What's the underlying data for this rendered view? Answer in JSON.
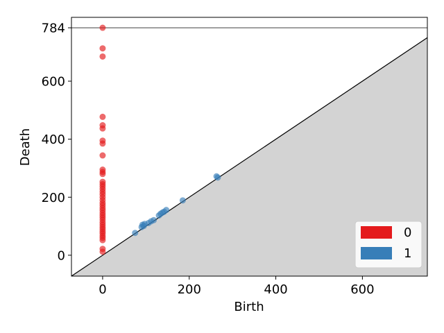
{
  "chart_data": {
    "type": "scatter",
    "title": "",
    "xlabel": "Birth",
    "ylabel": "Death",
    "xlim": [
      -72,
      750
    ],
    "ylim": [
      -72,
      820
    ],
    "x_ticks": [
      0,
      200,
      400,
      600
    ],
    "y_ticks": [
      0,
      200,
      400,
      600,
      784
    ],
    "x_tick_labels": [
      "0",
      "200",
      "400",
      "600"
    ],
    "y_tick_labels": [
      "0",
      "200",
      "400",
      "600",
      "784"
    ],
    "infinity_line": {
      "y": 784,
      "color": "#555555"
    },
    "diagonal": {
      "color": "#000000",
      "shade": "#d3d3d3"
    },
    "grid": false,
    "legend_position": "lower-right",
    "series": [
      {
        "name": "0",
        "color": "#e41a1c",
        "points": [
          [
            0,
            784
          ],
          [
            0,
            713
          ],
          [
            0,
            685
          ],
          [
            0,
            477
          ],
          [
            0,
            448
          ],
          [
            0,
            437
          ],
          [
            0,
            395
          ],
          [
            0,
            385
          ],
          [
            0,
            344
          ],
          [
            0,
            295
          ],
          [
            0,
            287
          ],
          [
            0,
            280
          ],
          [
            0,
            253
          ],
          [
            0,
            245
          ],
          [
            0,
            237
          ],
          [
            0,
            228
          ],
          [
            0,
            219
          ],
          [
            0,
            210
          ],
          [
            0,
            200
          ],
          [
            0,
            190
          ],
          [
            0,
            180
          ],
          [
            0,
            172
          ],
          [
            0,
            163
          ],
          [
            0,
            155
          ],
          [
            0,
            146
          ],
          [
            0,
            138
          ],
          [
            0,
            130
          ],
          [
            0,
            122
          ],
          [
            0,
            113
          ],
          [
            0,
            105
          ],
          [
            0,
            97
          ],
          [
            0,
            90
          ],
          [
            0,
            82
          ],
          [
            0,
            75
          ],
          [
            0,
            67
          ],
          [
            0,
            60
          ],
          [
            0,
            52
          ],
          [
            0,
            22
          ],
          [
            0,
            12
          ]
        ]
      },
      {
        "name": "1",
        "color": "#377eb8",
        "points": [
          [
            75,
            77
          ],
          [
            90,
            97
          ],
          [
            92,
            105
          ],
          [
            95,
            101
          ],
          [
            97,
            108
          ],
          [
            106,
            111
          ],
          [
            112,
            117
          ],
          [
            118,
            121
          ],
          [
            130,
            137
          ],
          [
            134,
            143
          ],
          [
            138,
            147
          ],
          [
            142,
            150
          ],
          [
            147,
            156
          ],
          [
            185,
            189
          ],
          [
            263,
            272
          ],
          [
            266,
            268
          ]
        ]
      }
    ]
  }
}
